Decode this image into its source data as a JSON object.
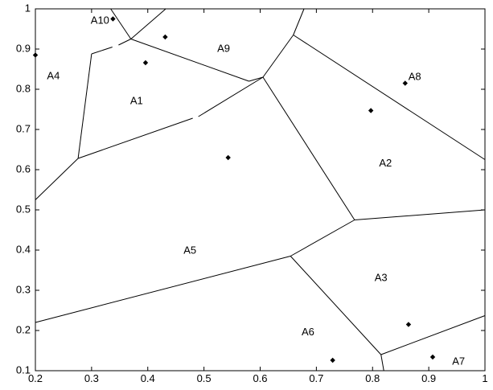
{
  "chart_data": {
    "type": "scatter",
    "title": "",
    "xlabel": "",
    "ylabel": "",
    "xlim": [
      0.2,
      1.0
    ],
    "ylim": [
      0.1,
      1.0
    ],
    "xticks": [
      "0.2",
      "0.3",
      "0.4",
      "0.5",
      "0.6",
      "0.7",
      "0.8",
      "0.9",
      "1"
    ],
    "xtick_values": [
      0.2,
      0.3,
      0.4,
      0.5,
      0.6,
      0.7,
      0.8,
      0.9,
      1.0
    ],
    "yticks": [
      "0.1",
      "0.2",
      "0.3",
      "0.4",
      "0.5",
      "0.6",
      "0.7",
      "0.8",
      "0.9",
      "1"
    ],
    "ytick_values": [
      0.1,
      0.2,
      0.3,
      0.4,
      0.5,
      0.6,
      0.7,
      0.8,
      0.9,
      1.0
    ],
    "grid": false,
    "points": [
      {
        "x": 0.338,
        "y": 0.975
      },
      {
        "x": 0.431,
        "y": 0.93
      },
      {
        "x": 0.396,
        "y": 0.866
      },
      {
        "x": 0.2,
        "y": 0.885
      },
      {
        "x": 0.543,
        "y": 0.63
      },
      {
        "x": 0.858,
        "y": 0.815
      },
      {
        "x": 0.797,
        "y": 0.747
      },
      {
        "x": 0.864,
        "y": 0.215
      },
      {
        "x": 0.729,
        "y": 0.126
      },
      {
        "x": 0.907,
        "y": 0.134
      }
    ],
    "region_labels": [
      {
        "text": "A10",
        "x": 0.315,
        "y": 0.97,
        "color": "#000000"
      },
      {
        "text": "A9",
        "x": 0.535,
        "y": 0.9,
        "color": "#000000"
      },
      {
        "text": "A4",
        "x": 0.232,
        "y": 0.832,
        "color": "#555555"
      },
      {
        "text": "A1",
        "x": 0.38,
        "y": 0.77,
        "color": "#000000"
      },
      {
        "text": "A8",
        "x": 0.875,
        "y": 0.83,
        "color": "#000000"
      },
      {
        "text": "A2",
        "x": 0.823,
        "y": 0.615,
        "color": "#000000"
      },
      {
        "text": "A5",
        "x": 0.475,
        "y": 0.398,
        "color": "#000000"
      },
      {
        "text": "A3",
        "x": 0.815,
        "y": 0.33,
        "color": "#000000"
      },
      {
        "text": "A6",
        "x": 0.685,
        "y": 0.195,
        "color": "#000000"
      },
      {
        "text": "A7",
        "x": 0.953,
        "y": 0.122,
        "color": "#000000"
      }
    ],
    "edges": [
      [
        [
          0.2,
          0.525
        ],
        [
          0.276,
          0.628
        ]
      ],
      [
        [
          0.276,
          0.628
        ],
        [
          0.3,
          0.888
        ]
      ],
      [
        [
          0.3,
          0.888
        ],
        [
          0.337,
          0.905
        ]
      ],
      [
        [
          0.348,
          0.91
        ],
        [
          0.37,
          0.925
        ]
      ],
      [
        [
          0.37,
          0.925
        ],
        [
          0.334,
          1.0
        ]
      ],
      [
        [
          0.37,
          0.925
        ],
        [
          0.432,
          1.0
        ]
      ],
      [
        [
          0.37,
          0.925
        ],
        [
          0.58,
          0.82
        ]
      ],
      [
        [
          0.276,
          0.628
        ],
        [
          0.48,
          0.728
        ]
      ],
      [
        [
          0.49,
          0.732
        ],
        [
          0.605,
          0.83
        ]
      ],
      [
        [
          0.58,
          0.82
        ],
        [
          0.605,
          0.83
        ]
      ],
      [
        [
          0.605,
          0.83
        ],
        [
          0.659,
          0.935
        ]
      ],
      [
        [
          0.659,
          0.935
        ],
        [
          0.678,
          1.0
        ]
      ],
      [
        [
          0.659,
          0.935
        ],
        [
          1.0,
          0.625
        ]
      ],
      [
        [
          0.605,
          0.83
        ],
        [
          0.768,
          0.475
        ]
      ],
      [
        [
          0.768,
          0.475
        ],
        [
          1.0,
          0.5
        ]
      ],
      [
        [
          0.768,
          0.475
        ],
        [
          0.654,
          0.385
        ]
      ],
      [
        [
          0.654,
          0.385
        ],
        [
          0.2,
          0.22
        ]
      ],
      [
        [
          0.654,
          0.385
        ],
        [
          0.815,
          0.14
        ]
      ],
      [
        [
          0.815,
          0.14
        ],
        [
          0.82,
          0.1
        ]
      ],
      [
        [
          0.815,
          0.14
        ],
        [
          1.0,
          0.237
        ]
      ]
    ]
  }
}
